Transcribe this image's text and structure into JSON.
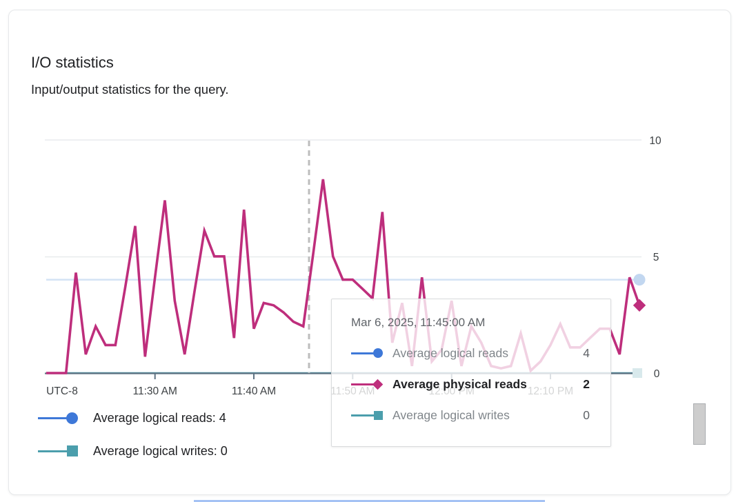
{
  "card": {
    "title": "I/O statistics",
    "subtitle": "Input/output statistics for the query."
  },
  "colors": {
    "logical_reads_blue": "#3e78d8",
    "logical_reads_line_faded": "#d3e3f5",
    "logical_reads_marker_faded": "#c2d7f0",
    "physical_reads_magenta": "#be2e7c",
    "logical_writes_teal": "#4b9eac",
    "logical_writes_marker_faded": "#d8e9ec",
    "axis": "#5f7383",
    "gridline": "#e8eaed",
    "hover_guide": "#bdbdbd"
  },
  "chart_data": {
    "type": "line",
    "title": "I/O statistics",
    "x_axis": {
      "timezone_label": "UTC-8",
      "tick_labels": [
        "11:30 AM",
        "11:40 AM",
        "11:50 AM",
        "12:00 PM",
        "12:10 PM"
      ],
      "start_time": "11:19 AM",
      "end_time": "12:19 PM",
      "interval_minutes": 1,
      "hover_guide_time": "11:45:00 AM"
    },
    "y_axis": {
      "tick_labels": [
        "10",
        "5",
        "0"
      ],
      "ticks": [
        10,
        5,
        0
      ],
      "range": [
        0,
        10
      ],
      "side": "right"
    },
    "series": [
      {
        "id": "logical_reads",
        "name": "Average logical reads",
        "marker": "circle",
        "color": "#3e78d8",
        "constant_value": 4,
        "points": 61
      },
      {
        "id": "physical_reads",
        "name": "Average physical reads",
        "marker": "diamond",
        "color": "#be2e7c",
        "values": [
          0,
          0,
          0,
          4.3,
          0.8,
          2,
          1.2,
          1.2,
          3.7,
          6.3,
          0.7,
          4.1,
          7.4,
          3.1,
          0.8,
          3.5,
          6.1,
          5,
          5,
          1.5,
          7,
          1.9,
          3,
          2.9,
          2.6,
          2.2,
          2,
          5.1,
          8.3,
          5,
          4,
          4,
          3.6,
          3.2,
          6.9,
          1.3,
          3,
          0.3,
          4.1,
          0.5,
          1,
          3.1,
          0.3,
          2,
          1.3,
          0.3,
          0.2,
          0.3,
          1.7,
          0.1,
          0.5,
          1.2,
          2.1,
          1.1,
          1.1,
          1.5,
          1.9,
          1.9,
          0.8,
          4.1,
          2.9
        ]
      },
      {
        "id": "logical_writes",
        "name": "Average logical writes",
        "marker": "square",
        "color": "#4b9eac",
        "constant_value": 0,
        "points": 61
      }
    ]
  },
  "tooltip": {
    "title": "Mar 6, 2025, 11:45:00 AM",
    "rows": [
      {
        "label": "Average logical reads",
        "value": "4",
        "emphasis": false
      },
      {
        "label": "Average physical reads",
        "value": "2",
        "emphasis": true
      },
      {
        "label": "Average logical writes",
        "value": "0",
        "emphasis": false
      }
    ]
  },
  "legend": {
    "items": [
      {
        "label": "Average logical reads:  4"
      },
      {
        "label": "Average logical writes:  0"
      }
    ]
  }
}
